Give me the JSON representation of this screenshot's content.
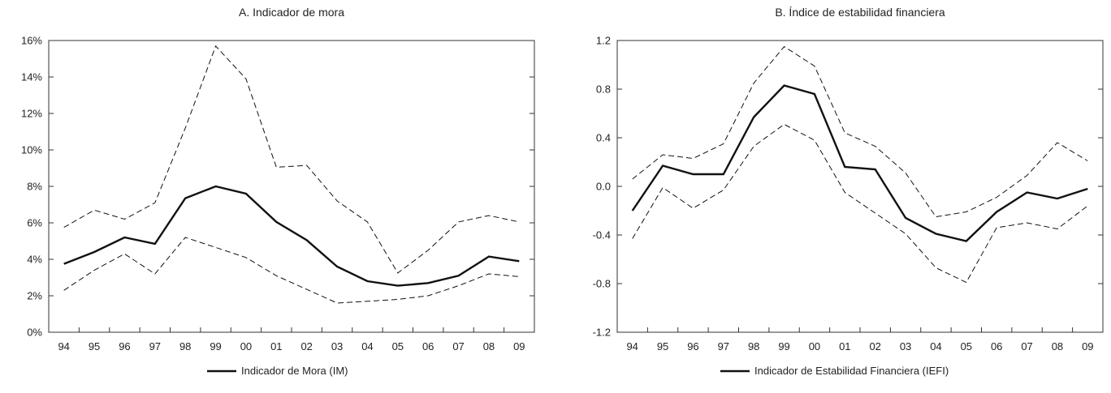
{
  "chart_data": [
    {
      "type": "line",
      "title": "A. Indicador de mora",
      "categories": [
        "94",
        "95",
        "96",
        "97",
        "98",
        "99",
        "00",
        "01",
        "02",
        "03",
        "04",
        "05",
        "06",
        "07",
        "08",
        "09"
      ],
      "ylim": [
        0,
        16
      ],
      "yticks": [
        "0%",
        "2%",
        "4%",
        "6%",
        "8%",
        "10%",
        "12%",
        "14%",
        "16%"
      ],
      "ytick_values": [
        0,
        2,
        4,
        6,
        8,
        10,
        12,
        14,
        16
      ],
      "legend": {
        "label": "Indicador de Mora (IM)",
        "position": "bottom-center"
      },
      "series": [
        {
          "name": "Indicador de Mora (IM)",
          "style": "solid",
          "values": [
            3.75,
            4.4,
            5.2,
            4.85,
            7.35,
            8.0,
            7.6,
            6.05,
            5.05,
            3.6,
            2.8,
            2.55,
            2.7,
            3.1,
            4.15,
            3.9
          ]
        },
        {
          "style": "dashed",
          "values": [
            5.75,
            6.7,
            6.2,
            7.1,
            11.2,
            15.7,
            13.9,
            9.05,
            9.15,
            7.2,
            6.05,
            3.25,
            4.5,
            6.05,
            6.4,
            6.05
          ]
        },
        {
          "style": "dashed",
          "values": [
            2.3,
            3.4,
            4.3,
            3.2,
            5.2,
            4.65,
            4.1,
            3.1,
            2.35,
            1.6,
            1.7,
            1.8,
            2.0,
            2.55,
            3.2,
            3.05
          ]
        }
      ]
    },
    {
      "type": "line",
      "title": "B. Índice de estabilidad financiera",
      "categories": [
        "94",
        "95",
        "96",
        "97",
        "98",
        "99",
        "00",
        "01",
        "02",
        "03",
        "04",
        "05",
        "06",
        "07",
        "08",
        "09"
      ],
      "ylim": [
        -1.2,
        1.2
      ],
      "yticks": [
        "-1.2",
        "-0.8",
        "-0.4",
        "0.0",
        "0.4",
        "0.8",
        "1.2"
      ],
      "ytick_values": [
        -1.2,
        -0.8,
        -0.4,
        0.0,
        0.4,
        0.8,
        1.2
      ],
      "legend": {
        "label": "Indicador de Estabilidad Financiera (IEFI)",
        "position": "bottom-center"
      },
      "series": [
        {
          "name": "Indicador de Estabilidad Financiera (IEFI)",
          "style": "solid",
          "values": [
            -0.2,
            0.17,
            0.1,
            0.1,
            0.57,
            0.83,
            0.76,
            0.16,
            0.14,
            -0.26,
            -0.39,
            -0.45,
            -0.21,
            -0.05,
            -0.1,
            -0.02
          ]
        },
        {
          "style": "dashed",
          "values": [
            0.06,
            0.26,
            0.23,
            0.35,
            0.85,
            1.15,
            0.99,
            0.44,
            0.33,
            0.11,
            -0.25,
            -0.21,
            -0.09,
            0.09,
            0.36,
            0.21
          ]
        },
        {
          "style": "dashed",
          "values": [
            -0.43,
            -0.01,
            -0.18,
            -0.03,
            0.33,
            0.51,
            0.38,
            -0.05,
            -0.22,
            -0.39,
            -0.67,
            -0.79,
            -0.34,
            -0.3,
            -0.35,
            -0.16
          ]
        }
      ]
    }
  ]
}
